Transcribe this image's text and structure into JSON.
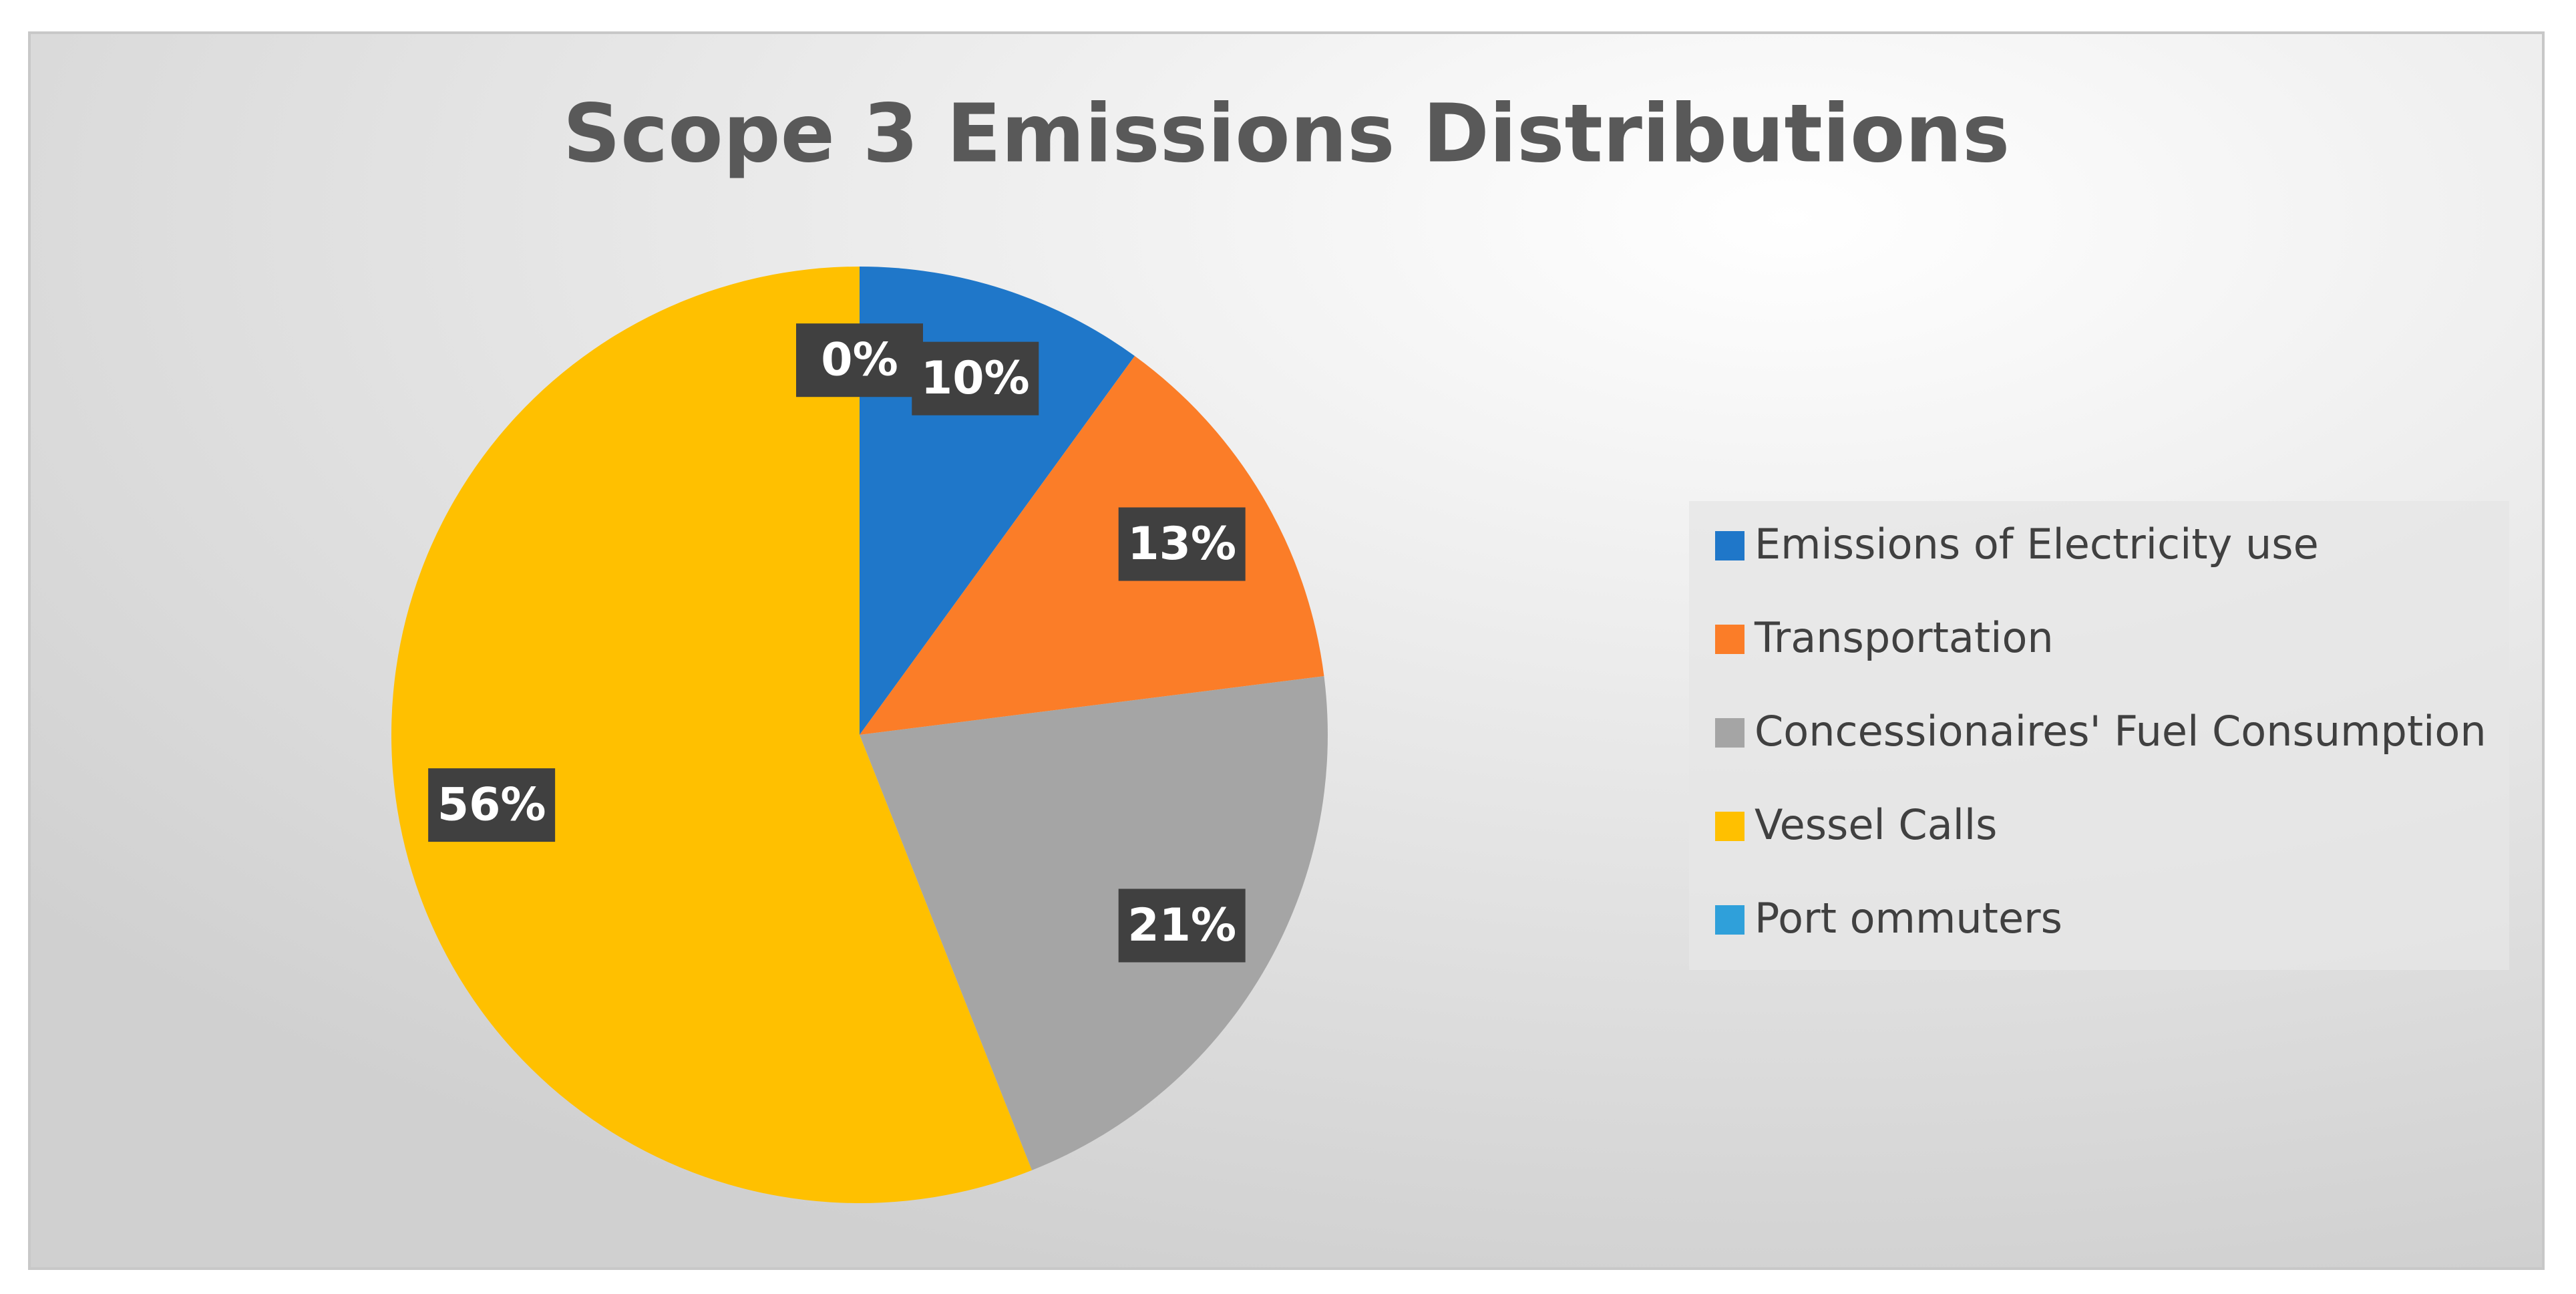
{
  "chart_data": {
    "type": "pie",
    "title": "Scope 3 Emissions Distributions",
    "categories": [
      "Emissions of Electricity use",
      "Transportation",
      "Concessionaires' Fuel Consumption",
      "Vessel Calls",
      "Port ommuters"
    ],
    "values": [
      10,
      13,
      21,
      56,
      0
    ],
    "value_labels": [
      "10%",
      "13%",
      "21%",
      "56%",
      "0%"
    ],
    "colors": [
      "#1f77c9",
      "#fb7d28",
      "#a5a5a5",
      "#ffc000",
      "#2fa0da"
    ],
    "legend": "right"
  }
}
